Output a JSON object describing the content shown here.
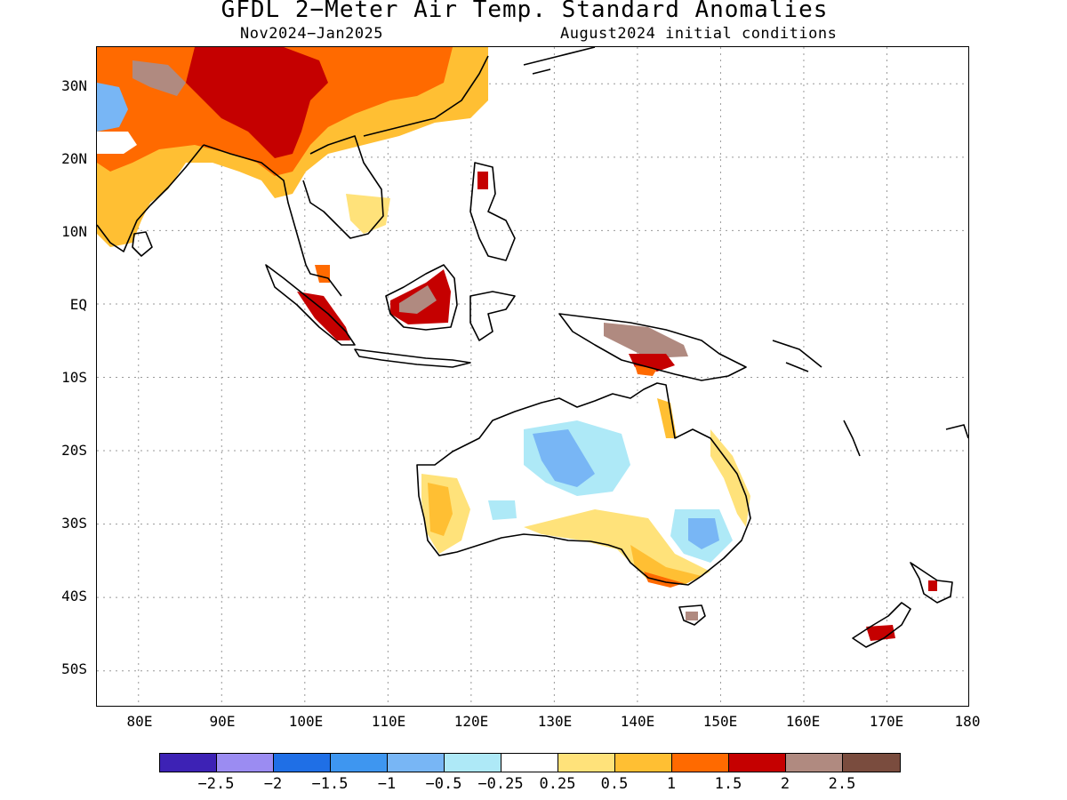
{
  "header": {
    "title": "GFDL 2−Meter Air Temp. Standard Anomalies",
    "period": "Nov2024−Jan2025",
    "initial_conditions": "August2024 initial conditions"
  },
  "map": {
    "region": "Indo-Pacific / Maritime Continent / Australia",
    "lat_labels": [
      "30N",
      "20N",
      "10N",
      "EQ",
      "10S",
      "20S",
      "30S",
      "40S",
      "50S"
    ],
    "lon_labels": [
      "80E",
      "90E",
      "100E",
      "110E",
      "120E",
      "130E",
      "140E",
      "150E",
      "160E",
      "170E",
      "180"
    ],
    "gridlines": true,
    "gridline_style": "dotted"
  },
  "colorbar": {
    "colors": [
      "#3d22b5",
      "#9b8cf2",
      "#1f6fe6",
      "#3e96f0",
      "#78b6f5",
      "#aee9f7",
      "#ffffff",
      "#ffe27a",
      "#ffbf33",
      "#ff6a00",
      "#c50000",
      "#b08a80",
      "#7a4c3e"
    ],
    "labels": [
      "−2.5",
      "−2",
      "−1.5",
      "−1",
      "−0.5",
      "−0.25",
      "0.25",
      "0.5",
      "1",
      "1.5",
      "2",
      "2.5"
    ]
  },
  "chart_data": {
    "type": "heatmap",
    "title": "GFDL 2−Meter Air Temp. Standard Anomalies",
    "subtitle": "Nov2024−Jan2025",
    "lon_range": [
      75,
      180
    ],
    "lat_range": [
      -55,
      35
    ],
    "legend": "bottom"
  }
}
